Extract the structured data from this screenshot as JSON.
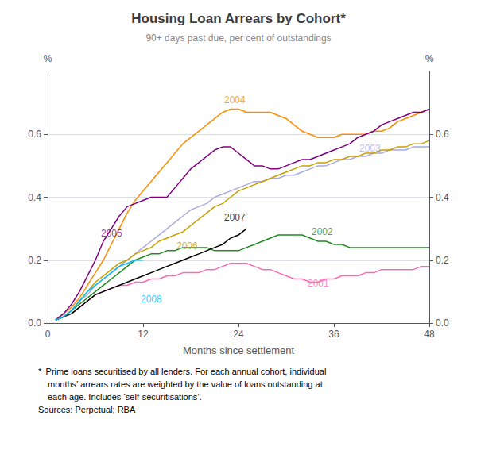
{
  "chart_data": {
    "type": "line",
    "title": "Housing Loan Arrears by Cohort*",
    "subtitle": "90+ days past due, per cent of outstandings",
    "xlabel": "Months since settlement",
    "ylabel": "%",
    "y2label": "%",
    "footnotes": [
      "*  Prime loans securitised by all lenders. For each annual cohort, individual",
      "months’ arrears rates are weighted by the value of loans outstanding at",
      "each age. Includes ‘self-securitisations’."
    ],
    "sources": "Sources: Perpetual; RBA",
    "xlim": [
      0,
      48
    ],
    "xticks": [
      0,
      12,
      24,
      36,
      48
    ],
    "ylim": [
      0.0,
      0.8
    ],
    "yticks": [
      {
        "value": 0.0,
        "label": "0.0"
      },
      0.2,
      0.4,
      0.6
    ],
    "y2lim": [
      0.0,
      0.8
    ],
    "y2ticks": [
      {
        "value": 0.0,
        "label": "0.0"
      },
      0.2,
      0.4,
      0.6
    ],
    "grid": true,
    "series": [
      {
        "name": "2001",
        "color": "#ff69b4",
        "x": [
          1,
          2,
          3,
          4,
          5,
          6,
          7,
          8,
          9,
          10,
          11,
          12,
          13,
          14,
          15,
          16,
          17,
          18,
          19,
          20,
          21,
          22,
          23,
          24,
          25,
          26,
          27,
          28,
          29,
          30,
          31,
          32,
          33,
          34,
          35,
          36,
          37,
          38,
          39,
          40,
          41,
          42,
          43,
          44,
          45,
          46,
          47,
          48
        ],
        "values": [
          0.01,
          0.02,
          0.03,
          0.05,
          0.07,
          0.09,
          0.1,
          0.11,
          0.12,
          0.12,
          0.13,
          0.13,
          0.14,
          0.14,
          0.15,
          0.15,
          0.16,
          0.16,
          0.16,
          0.17,
          0.17,
          0.18,
          0.19,
          0.19,
          0.19,
          0.18,
          0.17,
          0.17,
          0.16,
          0.15,
          0.14,
          0.14,
          0.13,
          0.13,
          0.14,
          0.14,
          0.15,
          0.15,
          0.15,
          0.16,
          0.16,
          0.17,
          0.17,
          0.17,
          0.17,
          0.17,
          0.18,
          0.18
        ]
      },
      {
        "name": "2002",
        "color": "#228B22",
        "x": [
          1,
          2,
          3,
          4,
          5,
          6,
          7,
          8,
          9,
          10,
          11,
          12,
          13,
          14,
          15,
          16,
          17,
          18,
          19,
          20,
          21,
          22,
          23,
          24,
          25,
          26,
          27,
          28,
          29,
          30,
          31,
          32,
          33,
          34,
          35,
          36,
          37,
          38,
          39,
          40,
          41,
          42,
          43,
          44,
          45,
          46,
          47,
          48
        ],
        "values": [
          0.01,
          0.02,
          0.04,
          0.06,
          0.08,
          0.1,
          0.12,
          0.14,
          0.16,
          0.18,
          0.2,
          0.21,
          0.22,
          0.22,
          0.23,
          0.23,
          0.24,
          0.24,
          0.24,
          0.24,
          0.23,
          0.23,
          0.23,
          0.23,
          0.24,
          0.25,
          0.26,
          0.27,
          0.28,
          0.28,
          0.28,
          0.28,
          0.27,
          0.26,
          0.26,
          0.25,
          0.25,
          0.24,
          0.24,
          0.24,
          0.24,
          0.24,
          0.24,
          0.24,
          0.24,
          0.24,
          0.24,
          0.24
        ]
      },
      {
        "name": "2003",
        "color": "#aaaadd",
        "x": [
          1,
          2,
          3,
          4,
          5,
          6,
          7,
          8,
          9,
          10,
          11,
          12,
          13,
          14,
          15,
          16,
          17,
          18,
          19,
          20,
          21,
          22,
          23,
          24,
          25,
          26,
          27,
          28,
          29,
          30,
          31,
          32,
          33,
          34,
          35,
          36,
          37,
          38,
          39,
          40,
          41,
          42,
          43,
          44,
          45,
          46,
          47,
          48
        ],
        "values": [
          0.01,
          0.02,
          0.04,
          0.07,
          0.09,
          0.12,
          0.14,
          0.16,
          0.18,
          0.2,
          0.22,
          0.24,
          0.26,
          0.28,
          0.3,
          0.32,
          0.34,
          0.36,
          0.37,
          0.38,
          0.4,
          0.41,
          0.42,
          0.43,
          0.44,
          0.45,
          0.45,
          0.46,
          0.46,
          0.47,
          0.47,
          0.48,
          0.49,
          0.5,
          0.5,
          0.51,
          0.52,
          0.52,
          0.53,
          0.53,
          0.54,
          0.54,
          0.55,
          0.55,
          0.55,
          0.56,
          0.56,
          0.56
        ]
      },
      {
        "name": "2004",
        "color": "#ff8c00",
        "x": [
          1,
          2,
          3,
          4,
          5,
          6,
          7,
          8,
          9,
          10,
          11,
          12,
          13,
          14,
          15,
          16,
          17,
          18,
          19,
          20,
          21,
          22,
          23,
          24,
          25,
          26,
          27,
          28,
          29,
          30,
          31,
          32,
          33,
          34,
          35,
          36,
          37,
          38,
          39,
          40,
          41,
          42,
          43,
          44,
          45,
          46,
          47,
          48
        ],
        "values": [
          0.01,
          0.03,
          0.05,
          0.08,
          0.12,
          0.16,
          0.2,
          0.25,
          0.3,
          0.35,
          0.39,
          0.42,
          0.45,
          0.48,
          0.51,
          0.54,
          0.57,
          0.59,
          0.61,
          0.63,
          0.65,
          0.67,
          0.68,
          0.68,
          0.67,
          0.67,
          0.67,
          0.67,
          0.66,
          0.65,
          0.63,
          0.61,
          0.6,
          0.59,
          0.59,
          0.59,
          0.6,
          0.6,
          0.6,
          0.6,
          0.61,
          0.61,
          0.62,
          0.64,
          0.65,
          0.66,
          0.67,
          0.68
        ]
      },
      {
        "name": "2005",
        "color": "#800080",
        "x": [
          1,
          2,
          3,
          4,
          5,
          6,
          7,
          8,
          9,
          10,
          11,
          12,
          13,
          14,
          15,
          16,
          17,
          18,
          19,
          20,
          21,
          22,
          23,
          24,
          25,
          26,
          27,
          28,
          29,
          30,
          31,
          32,
          33,
          34,
          35,
          36,
          37,
          38,
          39,
          40,
          41,
          42,
          43,
          44,
          45,
          46,
          47,
          48
        ],
        "values": [
          0.01,
          0.03,
          0.06,
          0.1,
          0.15,
          0.2,
          0.26,
          0.3,
          0.34,
          0.37,
          0.38,
          0.39,
          0.4,
          0.4,
          0.4,
          0.43,
          0.46,
          0.49,
          0.51,
          0.53,
          0.55,
          0.56,
          0.56,
          0.54,
          0.52,
          0.5,
          0.5,
          0.49,
          0.49,
          0.5,
          0.51,
          0.52,
          0.52,
          0.53,
          0.54,
          0.55,
          0.56,
          0.57,
          0.59,
          0.6,
          0.61,
          0.63,
          0.64,
          0.65,
          0.66,
          0.67,
          0.67,
          0.68
        ]
      },
      {
        "name": "2006",
        "color": "#c8a000",
        "x": [
          1,
          2,
          3,
          4,
          5,
          6,
          7,
          8,
          9,
          10,
          11,
          12,
          13,
          14,
          15,
          16,
          17,
          18,
          19,
          20,
          21,
          22,
          23,
          24,
          25,
          26,
          27,
          28,
          29,
          30,
          31,
          32,
          33,
          34,
          35,
          36,
          37,
          38,
          39,
          40,
          41,
          42,
          43,
          44,
          45,
          46,
          47,
          48
        ],
        "values": [
          0.01,
          0.02,
          0.04,
          0.07,
          0.1,
          0.13,
          0.15,
          0.17,
          0.19,
          0.2,
          0.22,
          0.23,
          0.24,
          0.26,
          0.27,
          0.28,
          0.29,
          0.31,
          0.33,
          0.35,
          0.37,
          0.38,
          0.4,
          0.42,
          0.43,
          0.44,
          0.45,
          0.46,
          0.47,
          0.48,
          0.49,
          0.5,
          0.5,
          0.51,
          0.51,
          0.52,
          0.52,
          0.53,
          0.53,
          0.54,
          0.54,
          0.55,
          0.55,
          0.56,
          0.56,
          0.57,
          0.57,
          0.58
        ]
      },
      {
        "name": "2007",
        "color": "#000000",
        "x": [
          1,
          2,
          3,
          4,
          5,
          6,
          7,
          8,
          9,
          10,
          11,
          12,
          13,
          14,
          15,
          16,
          17,
          18,
          19,
          20,
          21,
          22,
          23,
          24,
          25
        ],
        "values": [
          0.01,
          0.02,
          0.03,
          0.05,
          0.07,
          0.09,
          0.1,
          0.11,
          0.12,
          0.13,
          0.14,
          0.15,
          0.16,
          0.17,
          0.18,
          0.19,
          0.2,
          0.21,
          0.22,
          0.23,
          0.24,
          0.25,
          0.27,
          0.28,
          0.3
        ]
      },
      {
        "name": "2008",
        "color": "#00bfff",
        "x": [
          1,
          2,
          3,
          4,
          5,
          6,
          7,
          8,
          9,
          10,
          11,
          12
        ],
        "values": [
          0.01,
          0.02,
          0.04,
          0.07,
          0.1,
          0.12,
          0.14,
          0.16,
          0.18,
          0.19,
          0.2,
          0.2
        ]
      }
    ],
    "annotations": [
      {
        "text": "2001",
        "x": 32.5,
        "y": 0.125,
        "color": "#ff69b4"
      },
      {
        "text": "2002",
        "x": 33,
        "y": 0.29,
        "color": "#228B22"
      },
      {
        "text": "2003",
        "x": 39,
        "y": 0.555,
        "color": "#aaaadd"
      },
      {
        "text": "2004",
        "x": 22,
        "y": 0.71,
        "color": "#ff8c00"
      },
      {
        "text": "2005",
        "x": 6.5,
        "y": 0.285,
        "color": "#800080"
      },
      {
        "text": "2006",
        "x": 16,
        "y": 0.245,
        "color": "#c8a000"
      },
      {
        "text": "2007",
        "x": 22,
        "y": 0.335,
        "color": "#000000"
      },
      {
        "text": "2008",
        "x": 11.5,
        "y": 0.075,
        "color": "#00bfff"
      }
    ]
  }
}
